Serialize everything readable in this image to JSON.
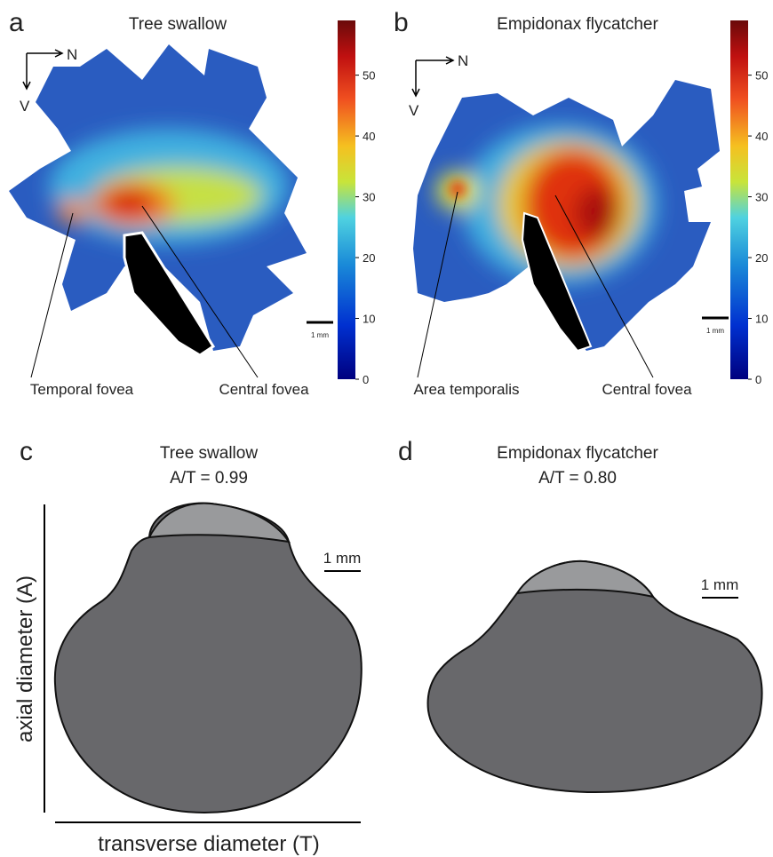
{
  "panels": [
    {
      "letter": "a",
      "title": "Tree swallow",
      "north": "N",
      "ventral": "V",
      "scale": "1 mm",
      "labels": [
        "Temporal fovea",
        "Central fovea"
      ],
      "colorbar": {
        "lim": [
          0,
          59
        ],
        "ticks": [
          0,
          10,
          20,
          30,
          40,
          50
        ]
      }
    },
    {
      "letter": "b",
      "title": "Empidonax flycatcher",
      "north": "N",
      "ventral": "V",
      "scale": "1 mm",
      "labels": [
        "Area temporalis",
        "Central fovea"
      ],
      "colorbar": {
        "lim": [
          0,
          59
        ],
        "ticks": [
          0,
          10,
          20,
          30,
          40,
          50
        ]
      }
    },
    {
      "letter": "c",
      "title": "Tree swallow",
      "ratio": "A/T = 0.99",
      "scale": "1 mm"
    },
    {
      "letter": "d",
      "title": "Empidonax flycatcher",
      "ratio": "A/T = 0.80",
      "scale": "1 mm"
    }
  ],
  "axes": {
    "y": "axial diameter (A)",
    "x": "transverse diameter (T)"
  }
}
